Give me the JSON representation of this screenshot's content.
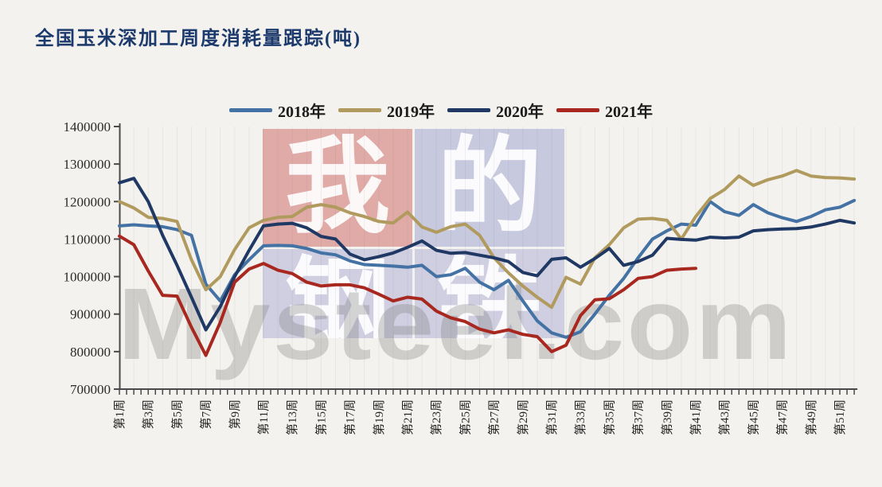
{
  "title": "全国玉米深加工周度消耗量跟踪(吨)",
  "watermark": {
    "brand": "Mysteel.com",
    "cells": [
      {
        "char": "我",
        "bg": "rgba(203,97,95,0.50)",
        "col": 0,
        "row": 0
      },
      {
        "char": "的",
        "bg": "rgba(154,160,208,0.50)",
        "col": 1,
        "row": 0
      },
      {
        "char": "钢",
        "bg": "rgba(154,160,208,0.42)",
        "col": 0,
        "row": 1
      },
      {
        "char": "铁",
        "bg": "rgba(154,160,208,0.42)",
        "col": 1,
        "row": 1
      }
    ]
  },
  "chart_data": {
    "type": "line",
    "title": "全国玉米深加工周度消耗量跟踪(吨)",
    "xlabel": "",
    "ylabel": "吨",
    "x_unit": "周 (week of year)",
    "weeks": 52,
    "x_tick_labels": [
      "第1周",
      "第3周",
      "第5周",
      "第7周",
      "第9周",
      "第11周",
      "第13周",
      "第15周",
      "第17周",
      "第19周",
      "第21周",
      "第23周",
      "第25周",
      "第27周",
      "第29周",
      "第31周",
      "第33周",
      "第35周",
      "第37周",
      "第39周",
      "第41周",
      "第43周",
      "第45周",
      "第47周",
      "第49周",
      "第51周"
    ],
    "ylim": [
      700000,
      1400000
    ],
    "y_ticks": [
      700000,
      800000,
      900000,
      1000000,
      1100000,
      1200000,
      1300000,
      1400000
    ],
    "grid": "faint vertical weekly gridlines",
    "legend_position": "top-center",
    "series": [
      {
        "name": "2018年",
        "color": "#4472a4",
        "values": [
          1135000,
          1138000,
          1135000,
          1133000,
          1125000,
          1110000,
          980000,
          935000,
          1005000,
          1045000,
          1082000,
          1083000,
          1082000,
          1075000,
          1063000,
          1058000,
          1042000,
          1032000,
          1030000,
          1028000,
          1025000,
          1030000,
          1000000,
          1005000,
          1022000,
          985000,
          965000,
          990000,
          935000,
          882000,
          850000,
          838000,
          853000,
          900000,
          950000,
          995000,
          1050000,
          1100000,
          1122000,
          1140000,
          1137000,
          1200000,
          1173000,
          1163000,
          1192000,
          1170000,
          1157000,
          1147000,
          1160000,
          1178000,
          1185000,
          1203000
        ]
      },
      {
        "name": "2019年",
        "color": "#b09a5e",
        "values": [
          1200000,
          1183000,
          1158000,
          1155000,
          1147000,
          1045000,
          965000,
          1000000,
          1072000,
          1130000,
          1150000,
          1158000,
          1160000,
          1185000,
          1192000,
          1185000,
          1170000,
          1160000,
          1147000,
          1143000,
          1172000,
          1132000,
          1118000,
          1133000,
          1140000,
          1110000,
          1050000,
          1010000,
          975000,
          945000,
          918000,
          998000,
          980000,
          1050000,
          1085000,
          1130000,
          1153000,
          1155000,
          1150000,
          1100000,
          1160000,
          1208000,
          1232000,
          1268000,
          1243000,
          1258000,
          1268000,
          1283000,
          1268000,
          1264000,
          1263000,
          1260000
        ]
      },
      {
        "name": "2020年",
        "color": "#203864",
        "values": [
          1250000,
          1262000,
          1200000,
          1110000,
          1030000,
          945000,
          858000,
          920000,
          1000000,
          1070000,
          1135000,
          1140000,
          1142000,
          1130000,
          1107000,
          1100000,
          1060000,
          1045000,
          1053000,
          1063000,
          1078000,
          1095000,
          1070000,
          1062000,
          1064000,
          1057000,
          1050000,
          1040000,
          1011000,
          1002000,
          1046000,
          1050000,
          1025000,
          1048000,
          1075000,
          1030000,
          1040000,
          1057000,
          1102000,
          1099000,
          1097000,
          1105000,
          1103000,
          1105000,
          1122000,
          1125000,
          1127000,
          1128000,
          1132000,
          1140000,
          1150000,
          1143000
        ]
      },
      {
        "name": "2021年",
        "color": "#a8281f",
        "values": [
          1108000,
          1085000,
          1015000,
          950000,
          948000,
          865000,
          790000,
          878000,
          985000,
          1020000,
          1035000,
          1017000,
          1008000,
          985000,
          975000,
          978000,
          978000,
          970000,
          953000,
          935000,
          945000,
          940000,
          908000,
          890000,
          880000,
          860000,
          850000,
          858000,
          846000,
          840000,
          800000,
          817000,
          896000,
          938000,
          941000,
          965000,
          995000,
          1000000,
          1017000,
          1020000,
          1022000
        ]
      }
    ]
  }
}
